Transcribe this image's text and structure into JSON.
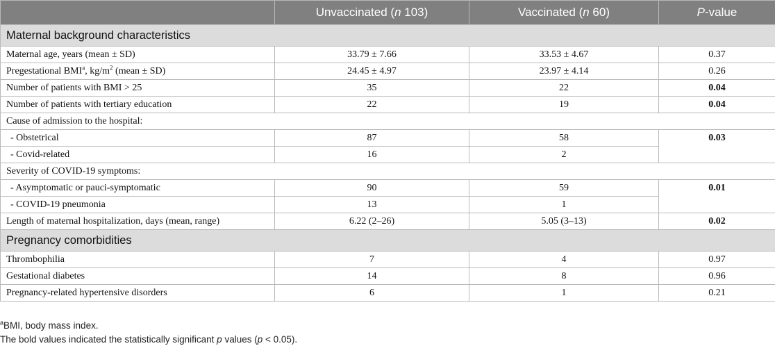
{
  "header": {
    "col_characteristic": "",
    "unvaccinated_prefix": "Unvaccinated (",
    "unvaccinated_n_label": "n",
    "unvaccinated_count": " 103)",
    "vaccinated_prefix": "Vaccinated (",
    "vaccinated_n_label": "n",
    "vaccinated_count": " 60)",
    "p_letter": "P",
    "p_suffix": "-value"
  },
  "sections": {
    "maternal": "Maternal background characteristics",
    "pregnancy": "Pregnancy comorbidities"
  },
  "rows": {
    "age": {
      "label": "Maternal age, years (mean ± SD)",
      "unvacc": "33.79 ± 7.66",
      "vacc": "33.53 ± 4.67",
      "p": "0.37"
    },
    "bmi": {
      "label_pre": "Pregestational BMI",
      "label_sup": "a",
      "label_mid": ", kg/m",
      "label_sup2": "2",
      "label_post": " (mean ± SD)",
      "unvacc": "24.45 ± 4.97",
      "vacc": "23.97 ± 4.14",
      "p": "0.26"
    },
    "bmi25": {
      "label": "Number of patients with BMI > 25",
      "unvacc": "35",
      "vacc": "22",
      "p": "0.04"
    },
    "education": {
      "label": "Number of patients with tertiary education",
      "unvacc": "22",
      "vacc": "19",
      "p": "0.04"
    },
    "admission_header": {
      "label": "Cause of admission to the hospital:"
    },
    "obstetrical": {
      "label": "- Obstetrical",
      "unvacc": "87",
      "vacc": "58",
      "p": "0.03"
    },
    "covid_related": {
      "label": "- Covid-related",
      "unvacc": "16",
      "vacc": "2"
    },
    "severity_header": {
      "label": "Severity of COVID-19 symptoms:"
    },
    "asymptomatic": {
      "label": "- Asymptomatic or pauci-symptomatic",
      "unvacc": "90",
      "vacc": "59",
      "p": "0.01"
    },
    "pneumonia": {
      "label": "- COVID-19 pneumonia",
      "unvacc": "13",
      "vacc": "1"
    },
    "hospitalization": {
      "label": "Length of maternal hospitalization, days (mean, range)",
      "unvacc": "6.22 (2–26)",
      "vacc": "5.05 (3–13)",
      "p": "0.02"
    },
    "thrombophilia": {
      "label": "Thrombophilia",
      "unvacc": "7",
      "vacc": "4",
      "p": "0.97"
    },
    "diabetes": {
      "label": "Gestational diabetes",
      "unvacc": "14",
      "vacc": "8",
      "p": "0.96"
    },
    "hypertensive": {
      "label": "Pregnancy-related hypertensive disorders",
      "unvacc": "6",
      "vacc": "1",
      "p": "0.21"
    }
  },
  "footnotes": {
    "note_a_marker": "a",
    "note_a_text": "BMI, body mass index.",
    "bold_pre": "The bold values indicated the statistically significant ",
    "bold_p": "p",
    "bold_post": " values (",
    "bold_p2": "p",
    "bold_end": " < 0.05)."
  }
}
